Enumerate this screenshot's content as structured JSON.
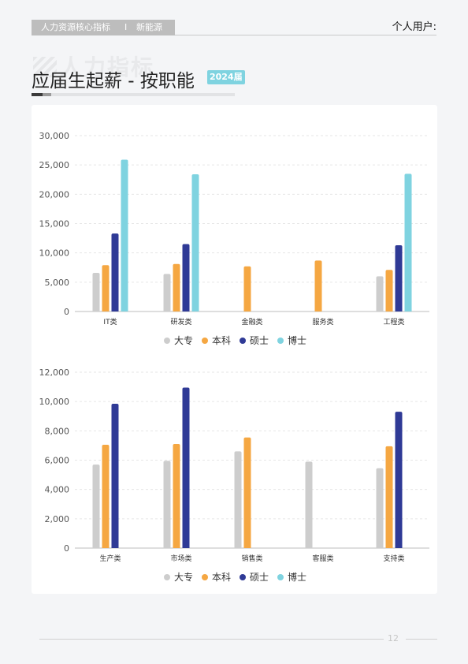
{
  "header": {
    "section": "人力资源核心指标",
    "separator": "I",
    "industry": "新能源",
    "user_label": "个人用户:"
  },
  "watermark": "人力指标",
  "page_title": "应届生起薪 - 按职能",
  "year_badge": "2024届",
  "colors": {
    "大专": "#cdcdcd",
    "本科": "#f5a742",
    "硕士": "#2f3a96",
    "博士": "#7fd3e0"
  },
  "chart_data": [
    {
      "type": "bar",
      "categories": [
        "IT类",
        "研发类",
        "金融类",
        "服务类",
        "工程类"
      ],
      "ylim": [
        0,
        30000
      ],
      "yticks": [
        "0",
        "5,000",
        "10,000",
        "15,000",
        "20,000",
        "25,000",
        "30,000"
      ],
      "ytick_values": [
        0,
        5000,
        10000,
        15000,
        20000,
        25000,
        30000
      ],
      "grid": true,
      "legend_position": "bottom",
      "series": [
        {
          "name": "大专",
          "values": [
            6600,
            6400,
            null,
            null,
            6000
          ]
        },
        {
          "name": "本科",
          "values": [
            7900,
            8100,
            7700,
            8700,
            7100
          ]
        },
        {
          "name": "硕士",
          "values": [
            13300,
            11500,
            null,
            null,
            11300
          ]
        },
        {
          "name": "博士",
          "values": [
            25900,
            23400,
            null,
            null,
            23500
          ]
        }
      ]
    },
    {
      "type": "bar",
      "categories": [
        "生产类",
        "市场类",
        "销售类",
        "客服类",
        "支持类"
      ],
      "ylim": [
        0,
        12000
      ],
      "yticks": [
        "0",
        "2,000",
        "4,000",
        "6,000",
        "8,000",
        "10,000",
        "12,000"
      ],
      "ytick_values": [
        0,
        2000,
        4000,
        6000,
        8000,
        10000,
        12000
      ],
      "grid": true,
      "legend_position": "bottom",
      "series": [
        {
          "name": "大专",
          "values": [
            5700,
            5950,
            6600,
            5900,
            5450
          ]
        },
        {
          "name": "本科",
          "values": [
            7050,
            7100,
            7550,
            null,
            6950
          ]
        },
        {
          "name": "硕士",
          "values": [
            9850,
            10950,
            null,
            null,
            9300
          ]
        },
        {
          "name": "博士",
          "values": [
            null,
            null,
            null,
            null,
            null
          ]
        }
      ]
    }
  ],
  "page_number": "12"
}
